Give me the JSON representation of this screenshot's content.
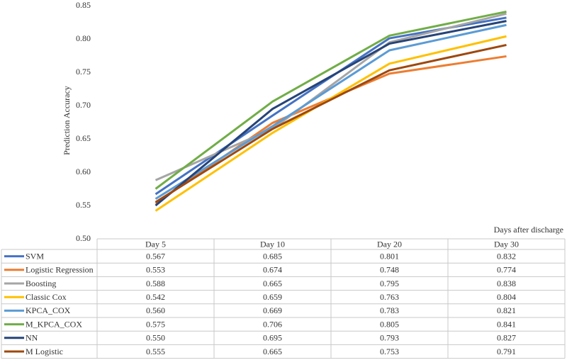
{
  "chart_data": {
    "type": "line",
    "y_label": "Prediction Accuracy",
    "x_label": "Days after discharge",
    "categories": [
      "Day 5",
      "Day 10",
      "Day 20",
      "Day 30"
    ],
    "ylim": [
      0.5,
      0.85
    ],
    "yticks": [
      {
        "value": 0.5,
        "label": "0.50"
      },
      0.55,
      {
        "value": 0.6,
        "label": "0.60"
      },
      0.65,
      {
        "value": 0.7,
        "label": "0.70"
      },
      0.75,
      {
        "value": 0.8,
        "label": "0.80"
      },
      0.85
    ],
    "grid": false,
    "series": [
      {
        "name": "SVM",
        "color": "#4472c4",
        "values": [
          0.567,
          0.685,
          0.801,
          0.832
        ],
        "value_labels": [
          "0.567",
          "0.685",
          "0.801",
          "0.832"
        ]
      },
      {
        "name": "Logistic Regression",
        "color": "#ed7d31",
        "values": [
          0.553,
          0.674,
          0.748,
          0.774
        ],
        "value_labels": [
          "0.553",
          "0.674",
          "0.748",
          "0.774"
        ]
      },
      {
        "name": "Boosting",
        "color": "#a5a5a5",
        "values": [
          0.588,
          0.665,
          0.795,
          0.838
        ],
        "value_labels": [
          "0.588",
          "0.665",
          "0.795",
          "0.838"
        ]
      },
      {
        "name": "Classic Cox",
        "color": "#ffc000",
        "values": [
          0.542,
          0.659,
          0.763,
          0.804
        ],
        "value_labels": [
          "0.542",
          "0.659",
          "0.763",
          "0.804"
        ]
      },
      {
        "name": "KPCA_COX",
        "color": "#5b9bd5",
        "values": [
          0.56,
          0.669,
          0.783,
          0.821
        ],
        "value_labels": [
          "0.560",
          "0.669",
          "0.783",
          "0.821"
        ]
      },
      {
        "name": "M_KPCA_COX",
        "color": "#70ad47",
        "values": [
          0.575,
          0.706,
          0.805,
          0.841
        ],
        "value_labels": [
          "0.575",
          "0.706",
          "0.805",
          "0.841"
        ]
      },
      {
        "name": "NN",
        "color": "#264478",
        "values": [
          0.55,
          0.695,
          0.793,
          0.827
        ],
        "value_labels": [
          "0.550",
          "0.695",
          "0.793",
          "0.827"
        ]
      },
      {
        "name": "M Logistic",
        "color": "#9e480e",
        "values": [
          0.555,
          0.665,
          0.753,
          0.791
        ],
        "value_labels": [
          "0.555",
          "0.665",
          "0.753",
          "0.791"
        ]
      }
    ]
  }
}
